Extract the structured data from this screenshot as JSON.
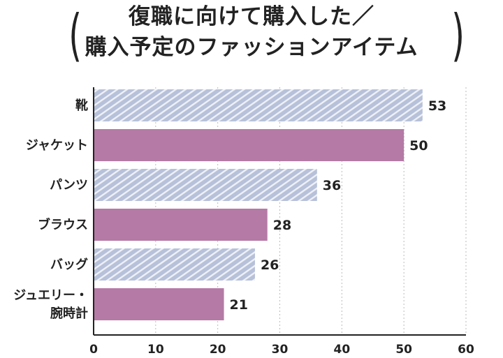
{
  "chart_data": {
    "type": "bar",
    "orientation": "horizontal",
    "title_lines": [
      "復職に向けて購入した／",
      "購入予定のファッションアイテム"
    ],
    "categories": [
      "靴",
      "ジャケット",
      "パンツ",
      "ブラウス",
      "バッグ",
      "ジュエリー・腕時計"
    ],
    "category_label_lines": [
      [
        "靴"
      ],
      [
        "ジャケット"
      ],
      [
        "パンツ"
      ],
      [
        "ブラウス"
      ],
      [
        "バッグ"
      ],
      [
        "ジュエリー・",
        "腕時計"
      ]
    ],
    "values": [
      53,
      50,
      36,
      28,
      26,
      21
    ],
    "xlim": [
      0,
      60
    ],
    "xticks": [
      0,
      10,
      20,
      30,
      40,
      50,
      60
    ],
    "grid": "vertical dotted",
    "bar_styles": [
      "hatched",
      "solid",
      "hatched",
      "solid",
      "hatched",
      "solid"
    ],
    "colors": {
      "hatched": "#b7c1d9",
      "solid": "#b57aa6",
      "text": "#222222"
    }
  }
}
